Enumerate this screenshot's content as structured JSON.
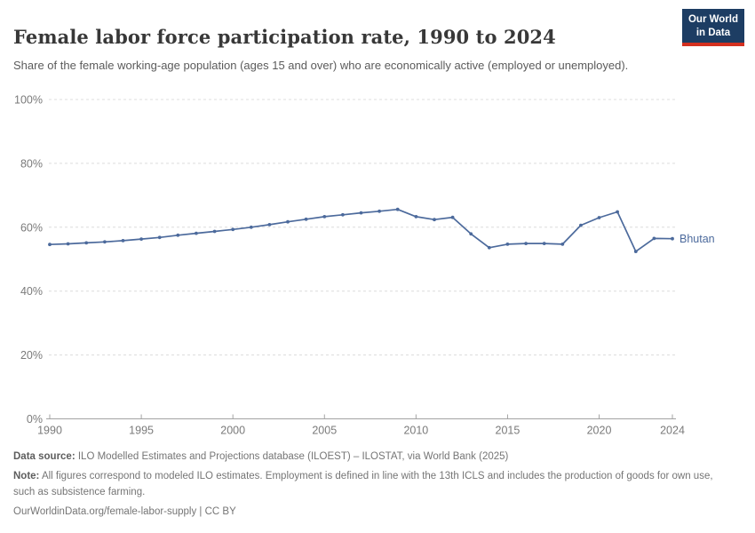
{
  "header": {
    "title": "Female labor force participation rate, 1990 to 2024",
    "subtitle": "Share of the female working-age population (ages 15 and over) who are economically active (employed or unemployed).",
    "logo": {
      "line1": "Our World",
      "line2": "in Data",
      "bg_color": "#1d3d63",
      "accent_color": "#d4301f"
    }
  },
  "chart_data": {
    "type": "line",
    "title": "Female labor force participation rate, 1990 to 2024",
    "xlabel": "",
    "ylabel": "",
    "xlim": [
      1990,
      2024
    ],
    "ylim": [
      0,
      100
    ],
    "grid": true,
    "grid_color": "#dcdcdc",
    "axis_color": "#a3a3a3",
    "tick_label_color": "#7a7a7a",
    "x_ticks": [
      1990,
      1995,
      2000,
      2005,
      2010,
      2015,
      2020,
      2024
    ],
    "x_tick_labels": [
      "1990",
      "1995",
      "2000",
      "2005",
      "2010",
      "2015",
      "2020",
      "2024"
    ],
    "y_ticks": [
      0,
      20,
      40,
      60,
      80,
      100
    ],
    "y_tick_labels": [
      "0%",
      "20%",
      "40%",
      "60%",
      "80%",
      "100%"
    ],
    "legend_position": "end-of-line",
    "series": [
      {
        "name": "Bhutan",
        "color": "#4C6A9C",
        "x": [
          1990,
          1991,
          1992,
          1993,
          1994,
          1995,
          1996,
          1997,
          1998,
          1999,
          2000,
          2001,
          2002,
          2003,
          2004,
          2005,
          2006,
          2007,
          2008,
          2009,
          2010,
          2011,
          2012,
          2013,
          2014,
          2015,
          2016,
          2017,
          2018,
          2019,
          2020,
          2021,
          2022,
          2023,
          2024
        ],
        "values": [
          54.6,
          54.8,
          55.1,
          55.4,
          55.8,
          56.3,
          56.8,
          57.5,
          58.1,
          58.7,
          59.3,
          60.0,
          60.8,
          61.7,
          62.5,
          63.3,
          63.9,
          64.5,
          65.0,
          65.6,
          63.3,
          62.4,
          63.1,
          57.9,
          53.6,
          54.7,
          54.9,
          54.9,
          54.7,
          60.6,
          63.0,
          64.8,
          52.4,
          56.5,
          56.4
        ]
      }
    ]
  },
  "footer": {
    "source_label": "Data source:",
    "source_text": " ILO Modelled Estimates and Projections database (ILOEST) – ILOSTAT, via World Bank (2025)",
    "note_label": "Note:",
    "note_text": " All figures correspond to modeled ILO estimates. Employment is defined in line with the 13th ICLS and includes the production of goods for own use, such as subsistence farming.",
    "permalink": "OurWorldinData.org/female-labor-supply | CC BY"
  }
}
